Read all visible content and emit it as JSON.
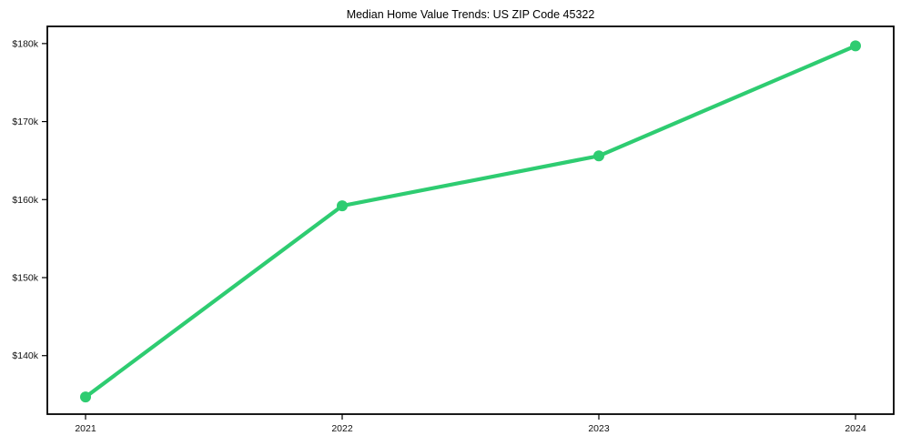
{
  "chart_data": {
    "type": "line",
    "title": "Median Home Value Trends: US ZIP Code 45322",
    "categories": [
      "2021",
      "2022",
      "2023",
      "2024"
    ],
    "series": [
      {
        "name": "Median Home Value",
        "values": [
          134700,
          159200,
          165600,
          179700
        ]
      }
    ],
    "xlabel": "",
    "ylabel": "",
    "ylim": [
      132500,
      182200
    ],
    "yticks": [
      140000,
      150000,
      160000,
      170000,
      180000
    ],
    "ytick_labels": [
      "$140k",
      "$150k",
      "$160k",
      "$170k",
      "$180k"
    ],
    "line_color": "#2ecc71",
    "axis_color": "#000000",
    "tick_label_color": "#111111",
    "background_color": "#ffffff",
    "marker": "circle",
    "grid": false,
    "legend_position": "none",
    "frame": true
  }
}
